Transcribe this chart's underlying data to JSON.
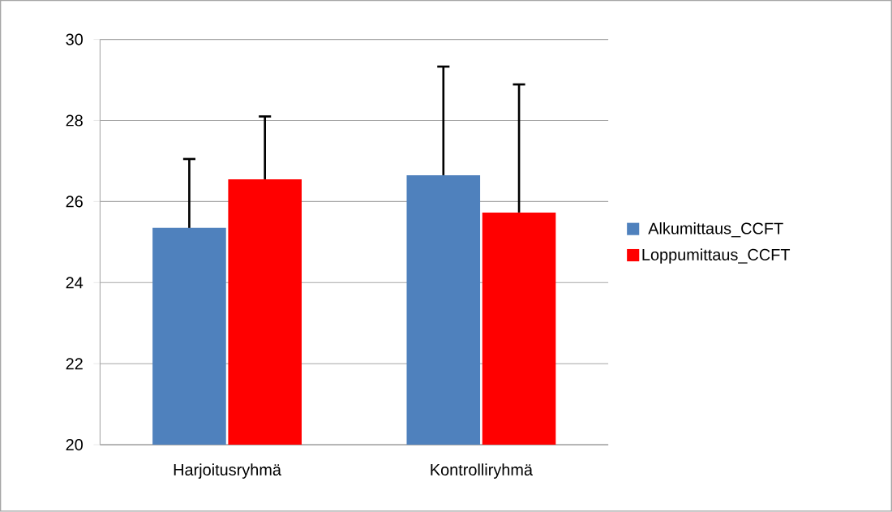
{
  "chart_data": {
    "type": "bar",
    "categories": [
      "Harjoitusryhmä",
      "Kontrolliryhmä"
    ],
    "series": [
      {
        "name": "Alkumittaus_CCFT",
        "color": "#4f81bd",
        "values": [
          25.35,
          26.65
        ],
        "errors": [
          [
            25.35,
            27.05
          ],
          [
            26.65,
            29.33
          ]
        ]
      },
      {
        "name": "Loppumittaus_CCFT",
        "color": "#ff0000",
        "values": [
          26.55,
          25.73
        ],
        "errors": [
          [
            26.55,
            28.1
          ],
          [
            25.73,
            28.89
          ]
        ]
      }
    ],
    "ylim": [
      20,
      30
    ],
    "yticks": [
      20,
      22,
      24,
      26,
      28,
      30
    ],
    "grid": "y",
    "legend": "right"
  }
}
